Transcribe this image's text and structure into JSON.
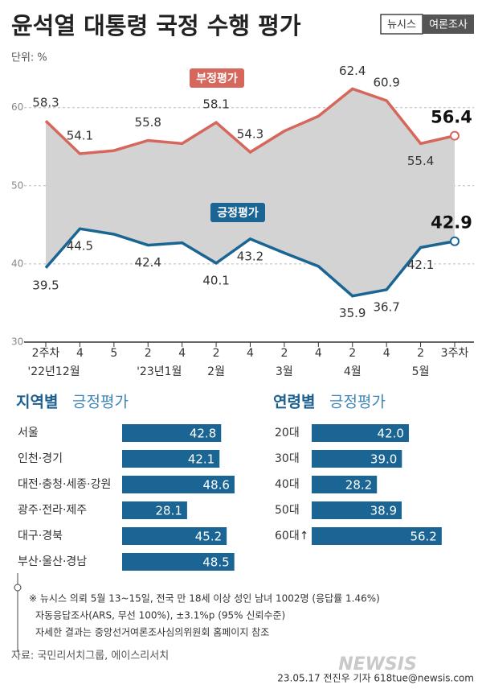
{
  "header": {
    "title": "윤석열 대통령 국정 수행 평가",
    "brand": "뉴시스",
    "tag": "여론조사"
  },
  "chart_data": [
    {
      "type": "line",
      "unit": "단위: %",
      "categories": [
        "2주차",
        "4",
        "5",
        "2",
        "4",
        "2",
        "4",
        "2",
        "4",
        "2",
        "4",
        "2",
        "3주차"
      ],
      "month_labels": [
        "'22년12월",
        null,
        null,
        "'23년1월",
        null,
        "2월",
        null,
        "3월",
        null,
        "4월",
        null,
        "5월",
        null
      ],
      "series": [
        {
          "name": "부정평가",
          "color": "#d6675c",
          "values": [
            58.3,
            54.1,
            54.5,
            55.8,
            55.4,
            58.1,
            54.3,
            57.0,
            58.9,
            62.4,
            60.9,
            55.4,
            56.4
          ],
          "value_labels": [
            "58.3",
            "54.1",
            null,
            "55.8",
            null,
            "58.1",
            "54.3",
            null,
            null,
            "62.4",
            "60.9",
            "55.4",
            "56.4"
          ]
        },
        {
          "name": "긍정평가",
          "color": "#1b6594",
          "values": [
            39.5,
            44.5,
            43.8,
            42.4,
            42.7,
            40.1,
            43.2,
            41.4,
            39.7,
            35.9,
            36.7,
            42.1,
            42.9
          ],
          "value_labels": [
            "39.5",
            "44.5",
            null,
            "42.4",
            null,
            "40.1",
            "43.2",
            null,
            null,
            "35.9",
            "36.7",
            "42.1",
            "42.9"
          ]
        }
      ],
      "ylim": [
        30,
        64.5
      ],
      "yticks": [
        30,
        40,
        50,
        60
      ],
      "grid": true,
      "fill_between": "#d3d3d3"
    },
    {
      "type": "hbar",
      "title": "지역별",
      "subtitle": "긍정평가",
      "categories": [
        "서울",
        "인천·경기",
        "대전·충청·세종·강원",
        "광주·전라·제주",
        "대구·경북",
        "부산·울산·경남"
      ],
      "values": [
        42.8,
        42.1,
        48.6,
        28.1,
        45.2,
        48.5
      ],
      "color": "#1b6594",
      "xlim": [
        0,
        50
      ]
    },
    {
      "type": "hbar",
      "title": "연령별",
      "subtitle": "긍정평가",
      "categories": [
        "20대",
        "30대",
        "40대",
        "50대",
        "60대↑"
      ],
      "values": [
        42.0,
        39.0,
        28.2,
        38.9,
        56.2
      ],
      "value_labels": [
        "42.0",
        "39.0",
        "28.2",
        "38.9",
        "56.2"
      ],
      "color": "#1b6594",
      "xlim": [
        0,
        50
      ]
    }
  ],
  "notes": [
    "※ 뉴시스 의뢰 5월 13~15일, 전국 만 18세 이상 성인 남녀 1002명 (응답률 1.46%)",
    "자동응답조사(ARS, 무선 100%), ±3.1%p (95% 신뢰수준)",
    "자세한 결과는 중앙선거여론조사심의위원회 홈페이지 참조"
  ],
  "source": "자료: 국민리서치그룹, 에이스리서치",
  "credit": "23.05.17 전진우 기자 618tue@newsis.com",
  "watermark": "NEWSIS"
}
